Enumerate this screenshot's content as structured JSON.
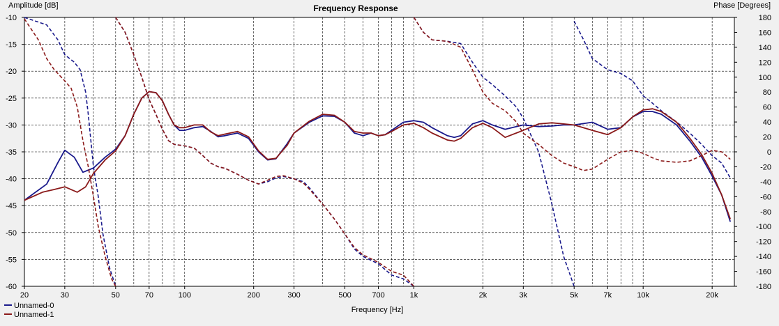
{
  "chart_data": {
    "type": "line",
    "title": "Frequency Response",
    "xlabel": "Frequency [Hz]",
    "ylabel_left": "Amplitude [dB]",
    "ylabel_right": "Phase [Degrees]",
    "xscale": "log",
    "xlim": [
      20,
      25000
    ],
    "ylim_left": [
      -60,
      -10
    ],
    "ylim_right": [
      -180,
      180
    ],
    "grid": true,
    "legend_position": "bottom-left",
    "x_ticks": [
      {
        "value": 20,
        "label": "20"
      },
      {
        "value": 30,
        "label": "30"
      },
      {
        "value": 50,
        "label": "50"
      },
      {
        "value": 70,
        "label": "70"
      },
      {
        "value": 100,
        "label": "100"
      },
      {
        "value": 200,
        "label": "200"
      },
      {
        "value": 300,
        "label": "300"
      },
      {
        "value": 500,
        "label": "500"
      },
      {
        "value": 700,
        "label": "700"
      },
      {
        "value": 1000,
        "label": "1k"
      },
      {
        "value": 2000,
        "label": "2k"
      },
      {
        "value": 3000,
        "label": "3k"
      },
      {
        "value": 5000,
        "label": "5k"
      },
      {
        "value": 7000,
        "label": "7k"
      },
      {
        "value": 10000,
        "label": "10k"
      },
      {
        "value": 20000,
        "label": "20k"
      }
    ],
    "y_ticks_left": [
      -10,
      -15,
      -20,
      -25,
      -30,
      -35,
      -40,
      -45,
      -50,
      -55,
      -60
    ],
    "y_ticks_right": [
      180,
      160,
      140,
      120,
      100,
      80,
      60,
      40,
      20,
      0,
      -20,
      -40,
      -60,
      -80,
      -100,
      -120,
      -140,
      -160,
      -180
    ],
    "series": [
      {
        "name": "Unnamed-0",
        "color": "#1a1a8c",
        "amplitude": [
          [
            20,
            -44
          ],
          [
            25,
            -41
          ],
          [
            28,
            -37
          ],
          [
            30,
            -34.7
          ],
          [
            33,
            -36
          ],
          [
            36,
            -38.8
          ],
          [
            40,
            -38
          ],
          [
            45,
            -36
          ],
          [
            50,
            -34.5
          ],
          [
            55,
            -32
          ],
          [
            60,
            -28
          ],
          [
            65,
            -25
          ],
          [
            70,
            -23.8
          ],
          [
            75,
            -24
          ],
          [
            80,
            -25.5
          ],
          [
            85,
            -28
          ],
          [
            90,
            -30
          ],
          [
            95,
            -31
          ],
          [
            100,
            -31
          ],
          [
            110,
            -30.5
          ],
          [
            120,
            -30.3
          ],
          [
            130,
            -31.2
          ],
          [
            140,
            -32.2
          ],
          [
            150,
            -32
          ],
          [
            170,
            -31.5
          ],
          [
            190,
            -32.5
          ],
          [
            210,
            -35
          ],
          [
            230,
            -36.5
          ],
          [
            250,
            -36.3
          ],
          [
            280,
            -33.5
          ],
          [
            300,
            -31.5
          ],
          [
            350,
            -29.5
          ],
          [
            400,
            -28.3
          ],
          [
            450,
            -28.4
          ],
          [
            500,
            -29.5
          ],
          [
            550,
            -31.5
          ],
          [
            600,
            -32
          ],
          [
            650,
            -31.5
          ],
          [
            700,
            -32
          ],
          [
            750,
            -31.8
          ],
          [
            800,
            -31
          ],
          [
            900,
            -29.5
          ],
          [
            1000,
            -29.2
          ],
          [
            1100,
            -29.5
          ],
          [
            1200,
            -30.5
          ],
          [
            1400,
            -32
          ],
          [
            1500,
            -32.3
          ],
          [
            1600,
            -32
          ],
          [
            1800,
            -29.8
          ],
          [
            2000,
            -29.2
          ],
          [
            2200,
            -30
          ],
          [
            2500,
            -30.8
          ],
          [
            3000,
            -30
          ],
          [
            3500,
            -30.3
          ],
          [
            4000,
            -30.2
          ],
          [
            4500,
            -30
          ],
          [
            5000,
            -30
          ],
          [
            6000,
            -29.5
          ],
          [
            7000,
            -30.8
          ],
          [
            8000,
            -30.5
          ],
          [
            9000,
            -28.5
          ],
          [
            10000,
            -27.5
          ],
          [
            11000,
            -27.5
          ],
          [
            12000,
            -28
          ],
          [
            14000,
            -30
          ],
          [
            16000,
            -33
          ],
          [
            18000,
            -36
          ],
          [
            20000,
            -39.5
          ],
          [
            22000,
            -43
          ],
          [
            24000,
            -48
          ]
        ],
        "phase": [
          [
            20,
            180
          ],
          [
            25,
            170
          ],
          [
            28,
            150
          ],
          [
            30,
            130
          ],
          [
            33,
            120
          ],
          [
            35,
            110
          ],
          [
            37,
            80
          ],
          [
            38,
            50
          ],
          [
            40,
            -20
          ],
          [
            42,
            -60
          ],
          [
            44,
            -110
          ],
          [
            47,
            -155
          ],
          [
            50,
            -180
          ],
          null,
          [
            50,
            180
          ],
          [
            55,
            160
          ],
          [
            60,
            130
          ],
          [
            65,
            100
          ],
          [
            70,
            70
          ],
          [
            75,
            50
          ],
          [
            80,
            30
          ],
          [
            85,
            15
          ],
          [
            90,
            10
          ],
          [
            100,
            8
          ],
          [
            110,
            5
          ],
          [
            120,
            -5
          ],
          [
            130,
            -15
          ],
          [
            140,
            -20
          ],
          [
            150,
            -22
          ],
          [
            170,
            -30
          ],
          [
            190,
            -38
          ],
          [
            210,
            -43
          ],
          [
            230,
            -40
          ],
          [
            250,
            -35
          ],
          [
            270,
            -33
          ],
          [
            300,
            -36
          ],
          [
            330,
            -40
          ],
          [
            350,
            -48
          ],
          [
            400,
            -70
          ],
          [
            450,
            -90
          ],
          [
            500,
            -110
          ],
          [
            550,
            -130
          ],
          [
            600,
            -140
          ],
          [
            700,
            -150
          ],
          [
            800,
            -165
          ],
          [
            900,
            -170
          ],
          [
            1000,
            -180
          ],
          null,
          [
            1000,
            180
          ],
          [
            1100,
            160
          ],
          [
            1200,
            150
          ],
          [
            1400,
            148
          ],
          [
            1600,
            145
          ],
          [
            1800,
            120
          ],
          [
            2000,
            100
          ],
          [
            2200,
            90
          ],
          [
            2500,
            75
          ],
          [
            2800,
            60
          ],
          [
            3000,
            45
          ],
          [
            3500,
            0
          ],
          [
            4000,
            -70
          ],
          [
            4500,
            -140
          ],
          [
            5000,
            -180
          ],
          null,
          [
            5000,
            175
          ],
          [
            5500,
            150
          ],
          [
            6000,
            125
          ],
          [
            7000,
            110
          ],
          [
            8000,
            105
          ],
          [
            9000,
            95
          ],
          [
            10000,
            75
          ],
          [
            11000,
            65
          ],
          [
            12000,
            55
          ],
          [
            14000,
            40
          ],
          [
            16000,
            25
          ],
          [
            18000,
            10
          ],
          [
            20000,
            -5
          ],
          [
            22000,
            -15
          ],
          [
            24000,
            -35
          ]
        ]
      },
      {
        "name": "Unnamed-1",
        "color": "#8b1a1a",
        "amplitude": [
          [
            20,
            -44
          ],
          [
            24,
            -42.5
          ],
          [
            27,
            -42
          ],
          [
            30,
            -41.5
          ],
          [
            34,
            -42.5
          ],
          [
            37,
            -41.5
          ],
          [
            40,
            -39
          ],
          [
            45,
            -36.5
          ],
          [
            50,
            -34.8
          ],
          [
            55,
            -32
          ],
          [
            60,
            -28
          ],
          [
            65,
            -25
          ],
          [
            70,
            -23.8
          ],
          [
            75,
            -24
          ],
          [
            80,
            -25.5
          ],
          [
            85,
            -28
          ],
          [
            90,
            -30
          ],
          [
            95,
            -30.5
          ],
          [
            100,
            -30.5
          ],
          [
            110,
            -30
          ],
          [
            120,
            -30
          ],
          [
            130,
            -31.3
          ],
          [
            140,
            -32
          ],
          [
            150,
            -31.7
          ],
          [
            170,
            -31.2
          ],
          [
            190,
            -32.2
          ],
          [
            210,
            -34.8
          ],
          [
            230,
            -36.4
          ],
          [
            250,
            -36.2
          ],
          [
            280,
            -33.8
          ],
          [
            300,
            -31.5
          ],
          [
            350,
            -29.3
          ],
          [
            400,
            -28
          ],
          [
            450,
            -28.2
          ],
          [
            500,
            -29.5
          ],
          [
            550,
            -31.2
          ],
          [
            600,
            -31.5
          ],
          [
            650,
            -31.5
          ],
          [
            700,
            -32
          ],
          [
            750,
            -31.8
          ],
          [
            800,
            -31.2
          ],
          [
            900,
            -30
          ],
          [
            1000,
            -29.7
          ],
          [
            1100,
            -30.5
          ],
          [
            1200,
            -31.5
          ],
          [
            1400,
            -32.8
          ],
          [
            1500,
            -33
          ],
          [
            1600,
            -32.5
          ],
          [
            1800,
            -30.5
          ],
          [
            2000,
            -29.7
          ],
          [
            2200,
            -30.5
          ],
          [
            2500,
            -32.3
          ],
          [
            3000,
            -31
          ],
          [
            3500,
            -29.8
          ],
          [
            4000,
            -29.6
          ],
          [
            4500,
            -29.8
          ],
          [
            5000,
            -30
          ],
          [
            6000,
            -31
          ],
          [
            7000,
            -31.8
          ],
          [
            8000,
            -30.5
          ],
          [
            9000,
            -28.5
          ],
          [
            10000,
            -27.2
          ],
          [
            11000,
            -27
          ],
          [
            12000,
            -27.5
          ],
          [
            14000,
            -29.5
          ],
          [
            16000,
            -32.5
          ],
          [
            18000,
            -35.5
          ],
          [
            20000,
            -39
          ],
          [
            22000,
            -43
          ],
          [
            24000,
            -47.5
          ]
        ],
        "phase": [
          [
            20,
            178
          ],
          [
            23,
            150
          ],
          [
            25,
            125
          ],
          [
            27,
            110
          ],
          [
            30,
            95
          ],
          [
            32,
            85
          ],
          [
            34,
            60
          ],
          [
            36,
            15
          ],
          [
            38,
            -20
          ],
          [
            40,
            -60
          ],
          [
            42,
            -100
          ],
          [
            45,
            -140
          ],
          [
            48,
            -170
          ],
          [
            50,
            -180
          ],
          null,
          [
            50,
            180
          ],
          [
            55,
            160
          ],
          [
            60,
            130
          ],
          [
            65,
            100
          ],
          [
            70,
            70
          ],
          [
            75,
            50
          ],
          [
            80,
            30
          ],
          [
            85,
            15
          ],
          [
            90,
            10
          ],
          [
            100,
            8
          ],
          [
            110,
            5
          ],
          [
            120,
            -5
          ],
          [
            130,
            -15
          ],
          [
            140,
            -20
          ],
          [
            150,
            -22
          ],
          [
            170,
            -30
          ],
          [
            190,
            -38
          ],
          [
            210,
            -43
          ],
          [
            230,
            -38
          ],
          [
            250,
            -33
          ],
          [
            270,
            -32
          ],
          [
            300,
            -36
          ],
          [
            330,
            -42
          ],
          [
            350,
            -50
          ],
          [
            400,
            -70
          ],
          [
            450,
            -90
          ],
          [
            500,
            -110
          ],
          [
            550,
            -128
          ],
          [
            600,
            -138
          ],
          [
            700,
            -148
          ],
          [
            800,
            -160
          ],
          [
            900,
            -165
          ],
          [
            1000,
            -180
          ],
          null,
          [
            1000,
            180
          ],
          [
            1100,
            160
          ],
          [
            1200,
            150
          ],
          [
            1400,
            148
          ],
          [
            1600,
            140
          ],
          [
            1800,
            110
          ],
          [
            2000,
            80
          ],
          [
            2200,
            65
          ],
          [
            2500,
            55
          ],
          [
            2800,
            40
          ],
          [
            3000,
            25
          ],
          [
            3500,
            10
          ],
          [
            4000,
            -5
          ],
          [
            4500,
            -15
          ],
          [
            5000,
            -20
          ],
          [
            5500,
            -25
          ],
          [
            6000,
            -23
          ],
          [
            7000,
            -10
          ],
          [
            8000,
            0
          ],
          [
            9000,
            2
          ],
          [
            10000,
            -2
          ],
          [
            11000,
            -8
          ],
          [
            12000,
            -12
          ],
          [
            14000,
            -14
          ],
          [
            16000,
            -12
          ],
          [
            18000,
            -5
          ],
          [
            20000,
            2
          ],
          [
            22000,
            0
          ],
          [
            24000,
            -10
          ]
        ]
      }
    ]
  }
}
